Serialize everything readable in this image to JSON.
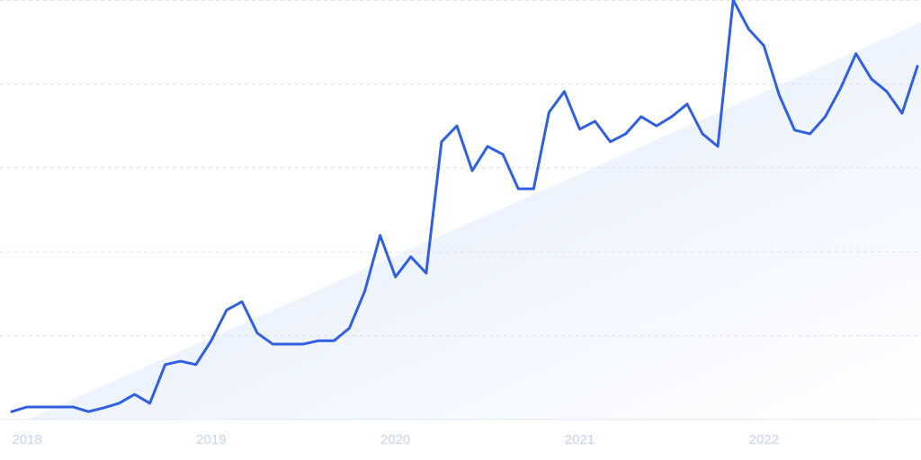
{
  "chart_data": {
    "type": "line",
    "categories": [
      null,
      "2018",
      null,
      null,
      null,
      null,
      null,
      null,
      null,
      null,
      null,
      null,
      null,
      "2019",
      null,
      null,
      null,
      null,
      null,
      null,
      null,
      null,
      null,
      null,
      null,
      "2020",
      null,
      null,
      null,
      null,
      null,
      null,
      null,
      null,
      null,
      null,
      null,
      "2021",
      null,
      null,
      null,
      null,
      null,
      null,
      null,
      null,
      null,
      null,
      null,
      "2022",
      null,
      null,
      null,
      null,
      null,
      null,
      null,
      null,
      null,
      null
    ],
    "series": [
      {
        "color": "#3060e0",
        "values": [
          1.9,
          3.0,
          3.0,
          3.0,
          3.0,
          1.9,
          2.8,
          3.9,
          6.0,
          3.9,
          13.1,
          13.9,
          13.1,
          18.8,
          26.1,
          28.1,
          20.6,
          18.0,
          18.0,
          18.0,
          18.8,
          18.8,
          21.8,
          30.6,
          43.9,
          34.0,
          38.8,
          34.9,
          66.2,
          70.0,
          59.3,
          65.1,
          63.2,
          55.0,
          55.0,
          73.2,
          78.2,
          69.2,
          71.1,
          66.2,
          68.1,
          72.2,
          70.0,
          72.2,
          75.2,
          68.1,
          65.1,
          100,
          93.1,
          89.1,
          77.3,
          69.0,
          68.1,
          72.2,
          79.0,
          87.2,
          81.2,
          78.2,
          73.0,
          84.2
        ]
      }
    ],
    "ylim": [
      0,
      100
    ],
    "yticks": [
      0,
      20,
      40,
      60,
      80,
      100
    ],
    "grid": true
  }
}
